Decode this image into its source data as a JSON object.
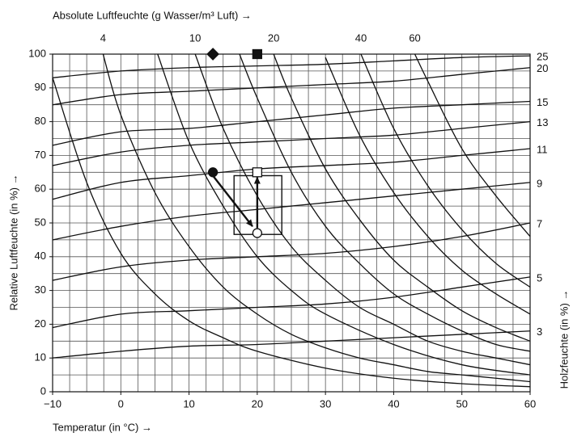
{
  "chart_data": {
    "type": "line",
    "title_top": "Absolute Luftfeuchte (g Wasser/m³ Luft) →",
    "ylabel": "Relative Luftfeuchte (in %) →",
    "xlabel": "Temperatur (in °C) →",
    "y2label": "Holzfeuchte (in %) →",
    "xlim": [
      -10,
      60
    ],
    "ylim": [
      0,
      100
    ],
    "xticks": [
      {
        "value": -10,
        "label": "−10"
      },
      0,
      10,
      20,
      30,
      40,
      50,
      60
    ],
    "yticks": [
      0,
      10,
      20,
      30,
      40,
      50,
      60,
      70,
      80,
      90,
      100
    ],
    "x_gridlines": [
      -7.5,
      -5,
      -2.5,
      0,
      2.5,
      5,
      7.5,
      10,
      12.5,
      15,
      17.5,
      20,
      22.5,
      25,
      27.5,
      30,
      32.5,
      35,
      37.5,
      40,
      42.5,
      45,
      47.5,
      50,
      52.5,
      55,
      57.5
    ],
    "y_gridlines": [
      5,
      10,
      15,
      20,
      25,
      30,
      35,
      40,
      45,
      50,
      55,
      60,
      65,
      70,
      75,
      80,
      85,
      90,
      95,
      100
    ],
    "grid": true,
    "color": "#111111",
    "absolute_humidity_curves": [
      {
        "x": [
          -10,
          -5,
          0,
          5,
          10,
          15,
          20,
          30,
          40,
          50,
          60
        ],
        "values": [
          93,
          62,
          41,
          29,
          21,
          16,
          12,
          7,
          4,
          2.4,
          1.5
        ]
      },
      {
        "name": "4",
        "x": [
          -2.6,
          0,
          5,
          10,
          15,
          20,
          25,
          30,
          35,
          40,
          45,
          50,
          55,
          60
        ],
        "values": [
          100,
          82,
          59,
          43,
          31,
          23,
          17,
          13,
          10,
          8,
          6,
          5,
          4,
          3
        ]
      },
      {
        "x": [
          5.4,
          10,
          15,
          20,
          25,
          30,
          40,
          50,
          60
        ],
        "values": [
          100,
          74,
          55,
          40,
          30,
          23,
          14,
          8,
          5
        ]
      },
      {
        "name": "10",
        "x": [
          10.9,
          15,
          20,
          25,
          30,
          35,
          40,
          45,
          50,
          55,
          60
        ],
        "values": [
          100,
          78,
          58,
          43,
          33,
          25,
          20,
          15,
          12,
          10,
          8
        ]
      },
      {
        "x": [
          17.4,
          20,
          25,
          30,
          35,
          40,
          45,
          50,
          55,
          60
        ],
        "values": [
          100,
          87,
          65,
          49,
          38,
          29,
          23,
          18,
          14,
          12
        ]
      },
      {
        "name": "20",
        "x": [
          22.4,
          25,
          30,
          35,
          40,
          45,
          50,
          55,
          60
        ],
        "values": [
          100,
          87,
          66,
          51,
          39,
          31,
          24,
          19,
          15
        ]
      },
      {
        "x": [
          30,
          35,
          40,
          45,
          50,
          55,
          60
        ],
        "values": [
          99,
          76,
          59,
          46,
          36,
          29,
          23
        ]
      },
      {
        "name": "40",
        "x": [
          35.2,
          40,
          45,
          50,
          55,
          60
        ],
        "values": [
          100,
          78,
          61,
          48,
          38,
          31
        ]
      },
      {
        "name": "60",
        "x": [
          43.1,
          45,
          50,
          55,
          60
        ],
        "values": [
          100,
          92,
          72,
          58,
          46
        ]
      }
    ],
    "wood_moisture_curves": [
      {
        "name": "3",
        "x": [
          -10,
          0,
          10,
          20,
          30,
          40,
          50,
          60
        ],
        "values": [
          10,
          12,
          13.5,
          14,
          15,
          16,
          17,
          18
        ]
      },
      {
        "name": "5",
        "x": [
          -10,
          0,
          10,
          20,
          30,
          40,
          50,
          60
        ],
        "values": [
          19,
          23,
          24,
          25,
          26,
          28,
          31,
          34
        ]
      },
      {
        "name": "7",
        "x": [
          -10,
          0,
          10,
          20,
          30,
          40,
          50,
          60
        ],
        "values": [
          33,
          37,
          39,
          40,
          41,
          43,
          46,
          50
        ]
      },
      {
        "name": "9",
        "x": [
          -10,
          0,
          10,
          20,
          30,
          40,
          50,
          60
        ],
        "values": [
          45,
          49,
          52,
          54,
          56,
          58,
          60,
          62
        ]
      },
      {
        "name": "11",
        "x": [
          -10,
          0,
          10,
          20,
          30,
          40,
          50,
          60
        ],
        "values": [
          57,
          62,
          64,
          66,
          67,
          68,
          70,
          72
        ]
      },
      {
        "name": "13",
        "x": [
          -10,
          0,
          10,
          20,
          30,
          40,
          50,
          60
        ],
        "values": [
          67,
          71,
          73,
          74,
          75,
          76,
          78,
          80
        ]
      },
      {
        "name": "15",
        "x": [
          -10,
          0,
          10,
          20,
          30,
          40,
          50,
          60
        ],
        "values": [
          73,
          77,
          78,
          80,
          82,
          84,
          85,
          86
        ]
      },
      {
        "name": "20",
        "x": [
          -10,
          0,
          10,
          20,
          30,
          40,
          50,
          60
        ],
        "values": [
          85,
          88,
          89,
          90,
          91,
          92,
          94,
          96
        ]
      },
      {
        "name": "25",
        "x": [
          -10,
          0,
          10,
          20,
          30,
          40,
          50,
          60
        ],
        "values": [
          93,
          95,
          96,
          96.5,
          97,
          98,
          99,
          99.5
        ]
      }
    ],
    "markers": [
      {
        "shape": "diamond",
        "fill": "#111111",
        "x": 13.5,
        "y": 100
      },
      {
        "shape": "square",
        "fill": "#111111",
        "x": 20,
        "y": 100
      },
      {
        "shape": "circle",
        "fill": "#111111",
        "x": 13.5,
        "y": 65
      },
      {
        "shape": "square",
        "fill": "#ffffff",
        "x": 20,
        "y": 65
      },
      {
        "shape": "circle",
        "fill": "#ffffff",
        "x": 20,
        "y": 47
      }
    ],
    "arrows": [
      {
        "x": [
          13.5,
          19.3
        ],
        "y": [
          64,
          49
        ]
      },
      {
        "x": [
          20,
          20
        ],
        "y": [
          48.5,
          63.5
        ]
      }
    ],
    "box": {
      "x": [
        16.6,
        23.6
      ],
      "y": [
        46.6,
        64
      ]
    }
  }
}
